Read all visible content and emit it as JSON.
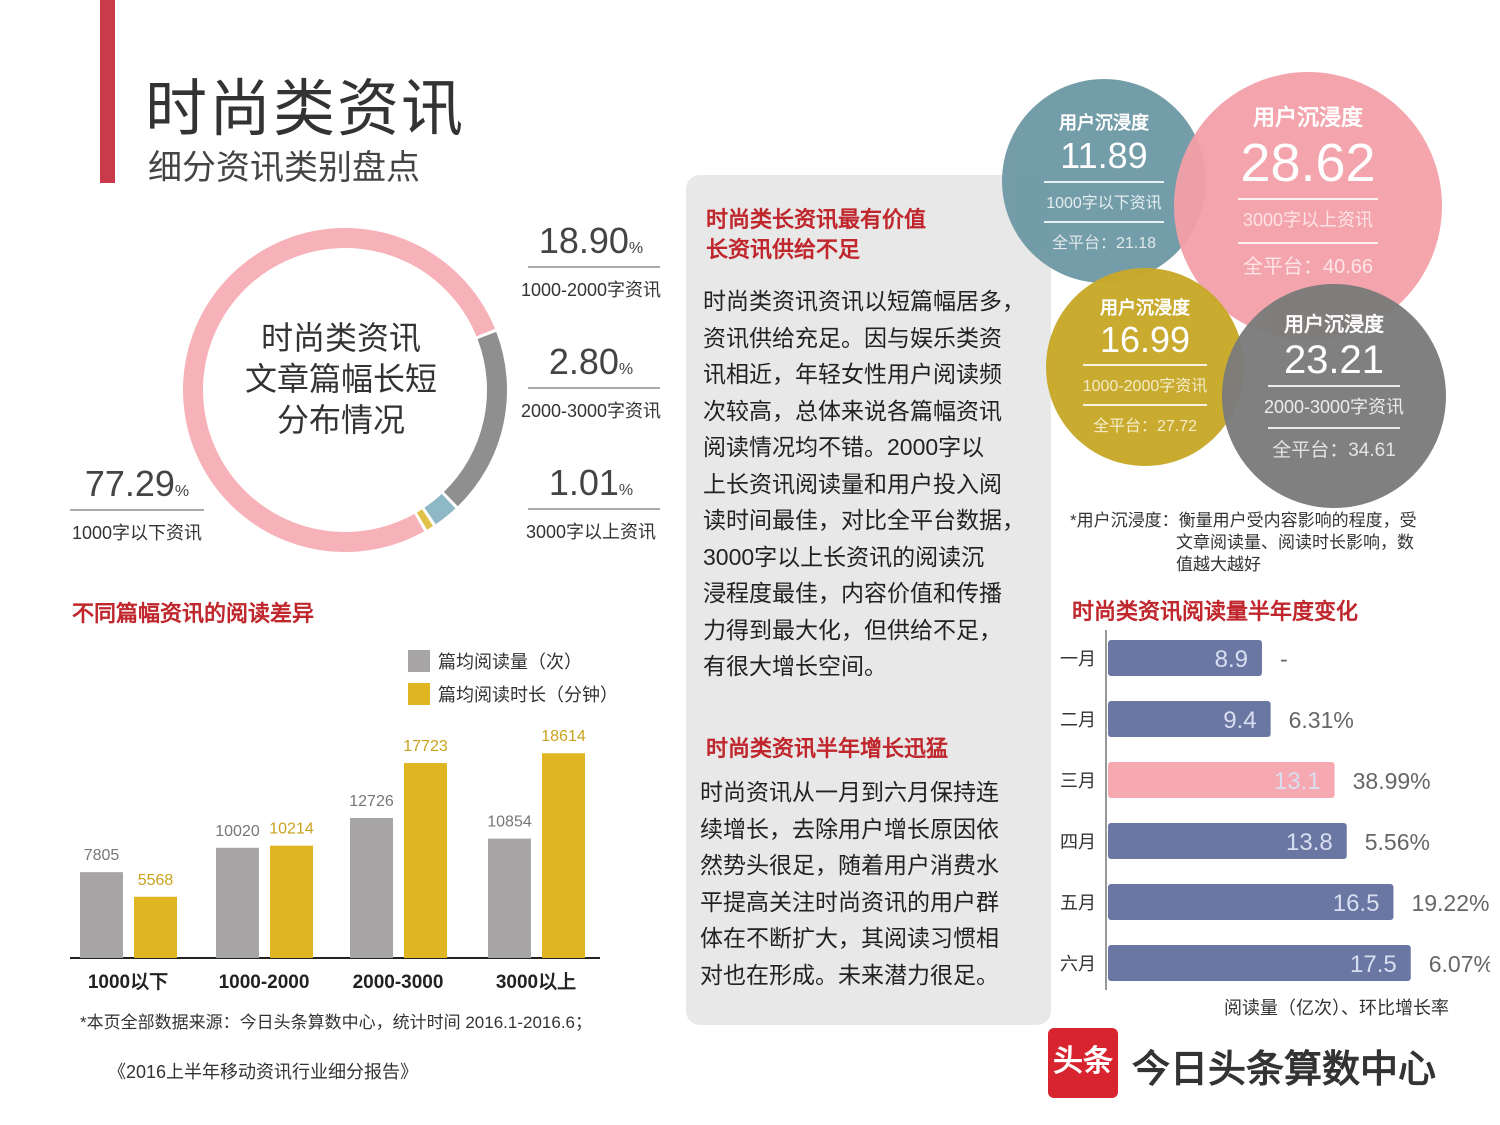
{
  "header": {
    "title": "时尚类资讯",
    "subtitle": "细分资讯类别盘点"
  },
  "donut": {
    "center_lines": [
      "时尚类资讯",
      "文章篇幅长短",
      "分布情况"
    ],
    "items": [
      {
        "pct": "77.29",
        "unit": "%",
        "label": "1000字以下资讯"
      },
      {
        "pct": "18.90",
        "unit": "%",
        "label": "1000-2000字资讯"
      },
      {
        "pct": "2.80",
        "unit": "%",
        "label": "2000-3000字资讯"
      },
      {
        "pct": "1.01",
        "unit": "%",
        "label": "3000字以上资讯"
      }
    ]
  },
  "bar_section": {
    "title": "不同篇幅资讯的阅读差异",
    "source": "*本页全部数据来源：今日头条算数中心，统计时间 2016.1-2016.6；",
    "report": "《2016上半年移动资讯行业细分报告》"
  },
  "text_panel": {
    "heading1_line1": "时尚类长资讯最有价值",
    "heading1_line2": "长资讯供给不足",
    "para1_lines": [
      "时尚类资讯资讯以短篇幅居多，",
      "资讯供给充足。因与娱乐类资",
      "讯相近，年轻女性用户阅读频",
      "次较高，总体来说各篇幅资讯",
      "阅读情况均不错。2000字以",
      "上长资讯阅读量和用户投入阅",
      "读时间最佳，对比全平台数据，",
      "3000字以上长资讯的阅读沉",
      "浸程度最佳，内容价值和传播",
      "力得到最大化，但供给不足，",
      "有很大增长空间。"
    ],
    "heading2": "时尚类资讯半年增长迅猛",
    "para2_lines": [
      "时尚资讯从一月到六月保持连",
      "续增长，去除用户增长原因依",
      "然势头很足，随着用户消费水",
      "平提高关注时尚资讯的用户群",
      "体在不断扩大，其阅读习惯相",
      "对也在形成。未来潜力很足。"
    ]
  },
  "immersion": {
    "footnote_lines": [
      "*用户沉浸度：衡量用户受内容影响的程度，受",
      "文章阅读量、阅读时长影响，数",
      "值越大越好"
    ],
    "circles": [
      {
        "head": "用户沉浸度",
        "value": "11.89",
        "sub": "1000字以下资讯",
        "platform": "全平台：21.18",
        "color": "#6f9aa6"
      },
      {
        "head": "用户沉浸度",
        "value": "28.62",
        "sub": "3000字以上资讯",
        "platform": "全平台：40.66",
        "color": "#f4a0a8"
      },
      {
        "head": "用户沉浸度",
        "value": "16.99",
        "sub": "1000-2000字资讯",
        "platform": "全平台：27.72",
        "color": "#c8a92a"
      },
      {
        "head": "用户沉浸度",
        "value": "23.21",
        "sub": "2000-3000字资讯",
        "platform": "全平台：34.61",
        "color": "#7b7b7b"
      }
    ]
  },
  "monthly": {
    "title": "时尚类资讯阅读量半年度变化",
    "axis_note": "阅读量（亿次）、环比增长率"
  },
  "brand": {
    "logo_text": "头条",
    "name": "今日头条算数中心"
  },
  "chart_data": [
    {
      "type": "pie",
      "title": "时尚类资讯文章篇幅长短分布情况",
      "categories": [
        "1000字以下资讯",
        "1000-2000字资讯",
        "2000-3000字资讯",
        "3000字以上资讯"
      ],
      "values": [
        77.29,
        18.9,
        2.8,
        1.01
      ],
      "colors": [
        "#f7b1b8",
        "#8f8f8f",
        "#8fb8c6",
        "#e2c14a"
      ]
    },
    {
      "type": "bar",
      "title": "不同篇幅资讯的阅读差异",
      "categories": [
        "1000以下",
        "1000-2000",
        "2000-3000",
        "3000以上"
      ],
      "series": [
        {
          "name": "篇均阅读量（次）",
          "values": [
            7805,
            10020,
            12726,
            10854
          ],
          "color": "#a7a5a6"
        },
        {
          "name": "篇均阅读时长（分钟）",
          "values": [
            5568,
            10214,
            17723,
            18614
          ],
          "color": "#dfb521"
        }
      ],
      "ylim": [
        0,
        20000
      ]
    },
    {
      "type": "bar",
      "orientation": "horizontal",
      "title": "时尚类资讯阅读量半年度变化",
      "categories": [
        "一月",
        "二月",
        "三月",
        "四月",
        "五月",
        "六月"
      ],
      "values": [
        8.9,
        9.4,
        13.1,
        13.8,
        16.5,
        17.5
      ],
      "labels": [
        "8.9",
        "9.4",
        "13.1",
        "13.8",
        "16.5",
        "17.5"
      ],
      "growth": [
        "-",
        "6.31%",
        "38.99%",
        "5.56%",
        "19.22%",
        "6.07%"
      ],
      "highlight_index": 2,
      "colors": {
        "normal": "#6a77a3",
        "highlight": "#f6a9b1"
      },
      "xlim": [
        0,
        20
      ]
    }
  ]
}
